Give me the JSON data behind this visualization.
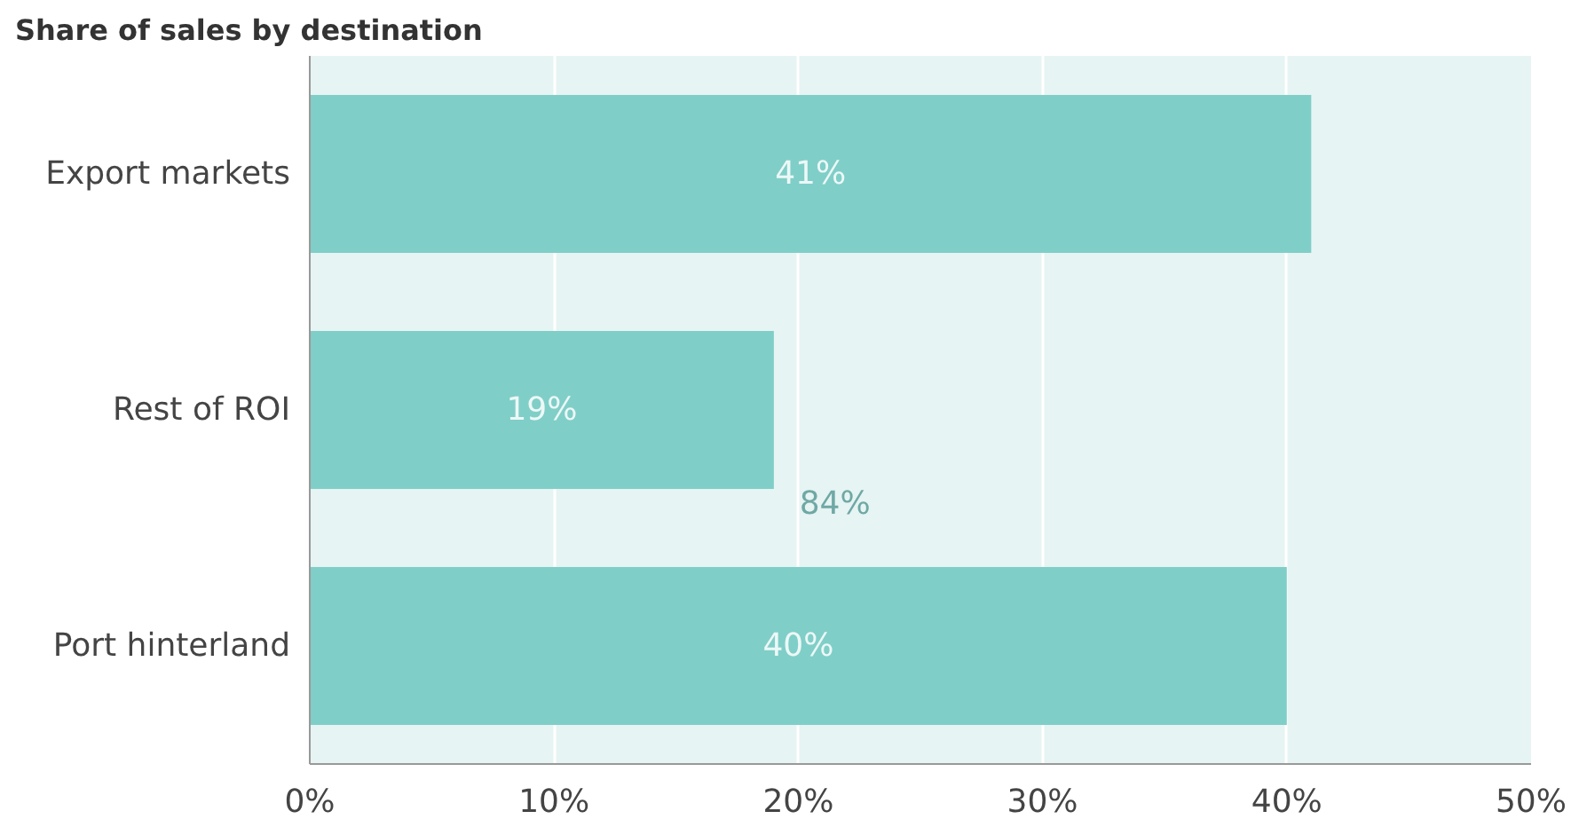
{
  "chart_data": {
    "type": "bar",
    "orientation": "horizontal",
    "title": "Share of sales by destination",
    "categories": [
      "Export markets",
      "Rest of ROI",
      "Port hinterland"
    ],
    "values": [
      41,
      19,
      40
    ],
    "color": "#80cec8",
    "value_labels": [
      "41%",
      "19%",
      "40%"
    ],
    "annotations": [
      "84%"
    ],
    "xlim": [
      0,
      50
    ],
    "xticks": [
      {
        "value": 0,
        "label": "0%"
      },
      {
        "value": 10,
        "label": "10%"
      },
      {
        "value": 20,
        "label": "20%"
      },
      {
        "value": 30,
        "label": "30%"
      },
      {
        "value": 40,
        "label": "40%"
      },
      {
        "value": 50,
        "label": "50%"
      }
    ],
    "grid": "x"
  }
}
